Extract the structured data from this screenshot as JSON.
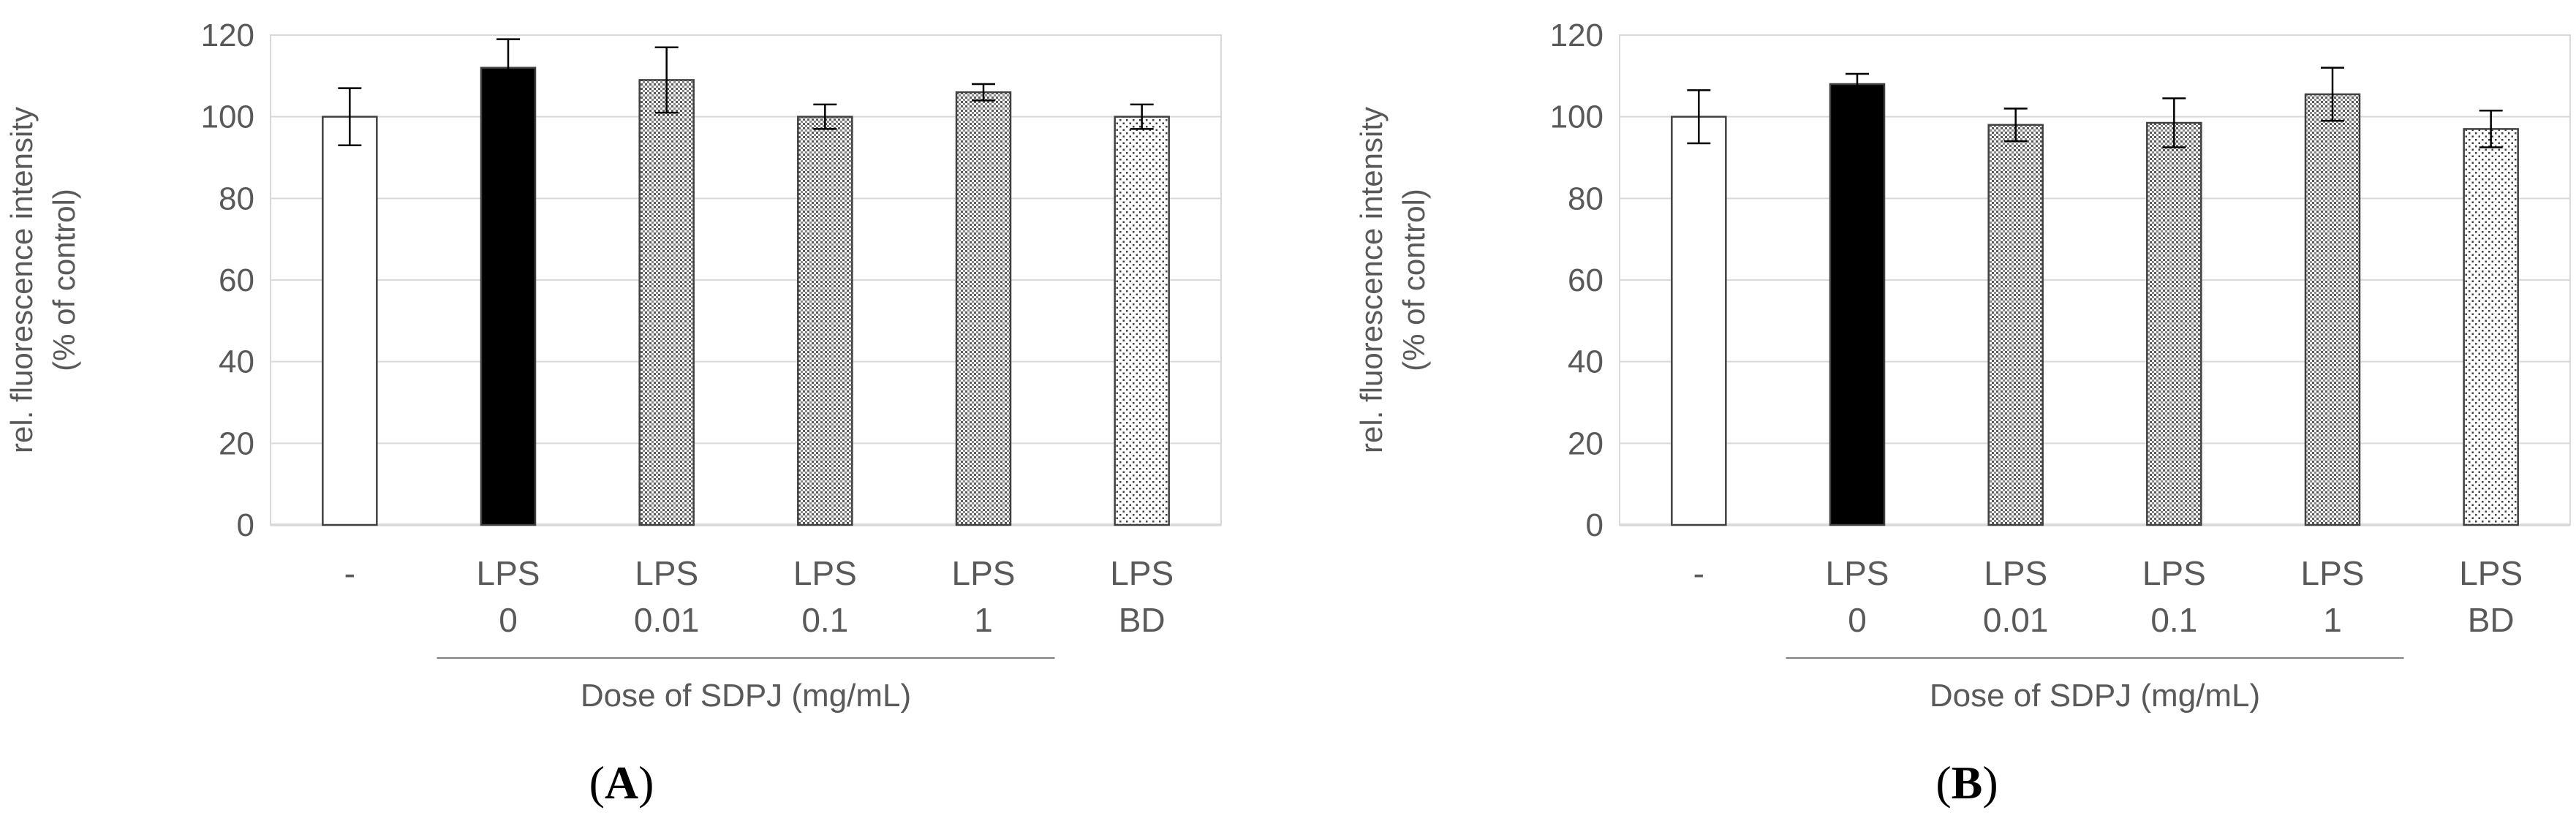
{
  "chart_data": [
    {
      "type": "bar",
      "panel_label": "A",
      "ylabel_line1": "rel. fluorescence intensity",
      "ylabel_line2": "(% of control)",
      "xlabel": "Dose of SDPJ (mg/mL)",
      "ylim": [
        0,
        120
      ],
      "yticks": [
        0,
        20,
        40,
        60,
        80,
        100,
        120
      ],
      "grid": true,
      "categories": [
        {
          "line1": "-",
          "line2": ""
        },
        {
          "line1": "LPS",
          "line2": "0"
        },
        {
          "line1": "LPS",
          "line2": "0.01"
        },
        {
          "line1": "LPS",
          "line2": "0.1"
        },
        {
          "line1": "LPS",
          "line2": "1"
        },
        {
          "line1": "LPS",
          "line2": "BD"
        }
      ],
      "values": [
        100,
        112,
        109,
        100,
        106,
        100
      ],
      "errors": [
        7,
        7,
        8,
        3,
        2,
        3
      ]
    },
    {
      "type": "bar",
      "panel_label": "B",
      "ylabel_line1": "rel. fluorescence intensity",
      "ylabel_line2": "(% of control)",
      "xlabel": "Dose of SDPJ (mg/mL)",
      "ylim": [
        0,
        120
      ],
      "yticks": [
        0,
        20,
        40,
        60,
        80,
        100,
        120
      ],
      "grid": true,
      "categories": [
        {
          "line1": "-",
          "line2": ""
        },
        {
          "line1": "LPS",
          "line2": "0"
        },
        {
          "line1": "LPS",
          "line2": "0.01"
        },
        {
          "line1": "LPS",
          "line2": "0.1"
        },
        {
          "line1": "LPS",
          "line2": "1"
        },
        {
          "line1": "LPS",
          "line2": "BD"
        }
      ],
      "values": [
        100,
        108,
        98,
        98.5,
        105.5,
        97
      ],
      "errors": [
        6.5,
        2.5,
        4,
        6,
        6.5,
        4.5
      ]
    }
  ],
  "colors": {
    "axis": "#bfbfbf",
    "grid": "#d9d9d9",
    "text": "#595959",
    "bar_outline": "#404040",
    "control_fill": "#ffffff",
    "lps_fill": "#000000"
  },
  "bar_styles": [
    "white",
    "black",
    "dense-dots",
    "dense-dots",
    "dense-dots",
    "sparse-dots"
  ]
}
